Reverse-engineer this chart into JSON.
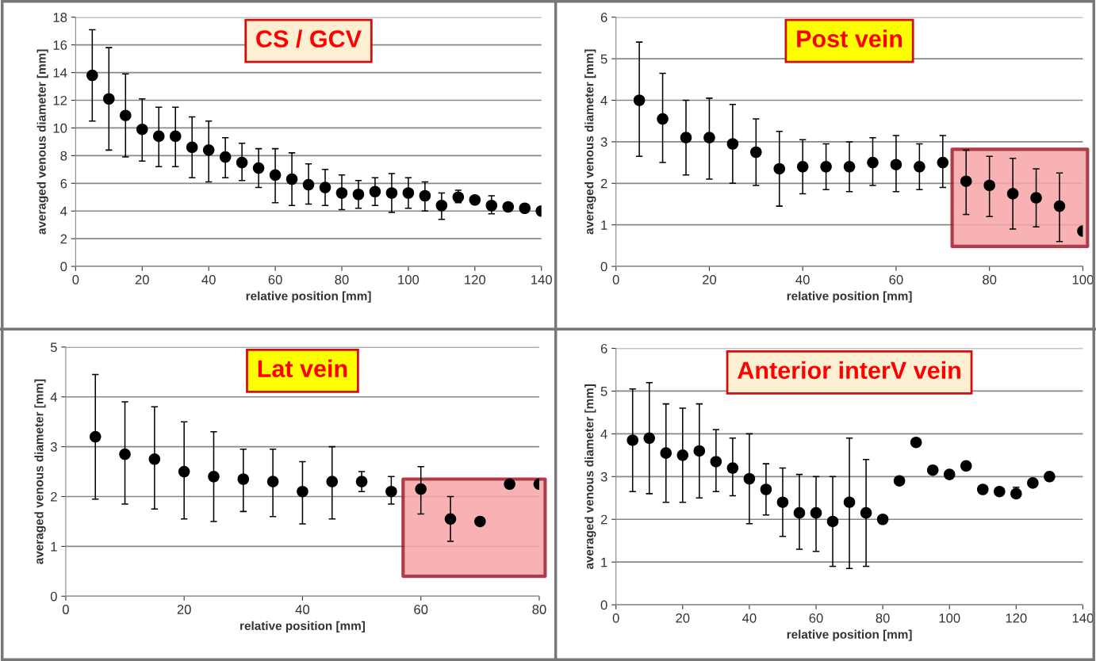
{
  "chart_data": [
    {
      "type": "scatter",
      "title": "CS / GCV",
      "xlabel": "relative position [mm]",
      "ylabel": "averaged venous diameter [mm]",
      "color": "#000000",
      "marker": "circle",
      "grid": "y",
      "x": [
        5,
        10,
        15,
        20,
        25,
        30,
        35,
        40,
        45,
        50,
        55,
        60,
        65,
        70,
        75,
        80,
        85,
        90,
        95,
        100,
        105,
        110,
        115,
        120,
        125,
        130,
        135,
        140
      ],
      "values": [
        13.8,
        12.1,
        10.9,
        9.9,
        9.4,
        9.4,
        8.6,
        8.4,
        7.9,
        7.5,
        7.1,
        6.6,
        6.3,
        5.9,
        5.7,
        5.3,
        5.2,
        5.4,
        5.3,
        5.3,
        5.1,
        4.4,
        5.0,
        4.8,
        4.4,
        4.3,
        4.2,
        4.0
      ],
      "errors": [
        [
          10.5,
          17.1
        ],
        [
          8.4,
          15.8
        ],
        [
          7.9,
          13.9
        ],
        [
          7.6,
          12.1
        ],
        [
          7.2,
          11.5
        ],
        [
          7.2,
          11.5
        ],
        [
          6.4,
          10.8
        ],
        [
          6.1,
          10.5
        ],
        [
          6.4,
          9.3
        ],
        [
          6.2,
          8.9
        ],
        [
          5.7,
          8.5
        ],
        [
          4.6,
          8.5
        ],
        [
          4.4,
          8.2
        ],
        [
          4.5,
          7.4
        ],
        [
          4.4,
          7.0
        ],
        [
          4.1,
          6.6
        ],
        [
          4.2,
          6.2
        ],
        [
          4.4,
          6.4
        ],
        [
          3.9,
          6.7
        ],
        [
          4.2,
          6.4
        ],
        [
          4.0,
          6.1
        ],
        [
          3.4,
          5.3
        ],
        [
          4.6,
          5.5
        ],
        null,
        [
          3.8,
          5.1
        ],
        null,
        null,
        null
      ],
      "xlim": [
        0,
        140
      ],
      "xticks": [
        0,
        20,
        40,
        60,
        80,
        100,
        120,
        140
      ],
      "ylim": [
        0,
        18
      ],
      "yticks": [
        0,
        2,
        4,
        6,
        8,
        10,
        12,
        14,
        16,
        18
      ]
    },
    {
      "type": "scatter",
      "title": "Post vein",
      "xlabel": "relative position [mm]",
      "ylabel": "averaged venous diameter [mm]",
      "color": "#000000",
      "marker": "circle",
      "grid": "y",
      "x": [
        5,
        10,
        15,
        20,
        25,
        30,
        35,
        40,
        45,
        50,
        55,
        60,
        65,
        70,
        75,
        80,
        85,
        90,
        95,
        100
      ],
      "values": [
        4.0,
        3.55,
        3.1,
        3.1,
        2.95,
        2.75,
        2.35,
        2.4,
        2.4,
        2.4,
        2.5,
        2.45,
        2.4,
        2.5,
        2.05,
        1.95,
        1.75,
        1.65,
        1.45,
        0.85
      ],
      "errors": [
        [
          2.65,
          5.4
        ],
        [
          2.5,
          4.65
        ],
        [
          2.2,
          4.0
        ],
        [
          2.1,
          4.05
        ],
        [
          2.0,
          3.9
        ],
        [
          1.95,
          3.55
        ],
        [
          1.45,
          3.25
        ],
        [
          1.75,
          3.05
        ],
        [
          1.85,
          2.95
        ],
        [
          1.8,
          3.0
        ],
        [
          1.95,
          3.1
        ],
        [
          1.8,
          3.15
        ],
        [
          1.85,
          2.95
        ],
        [
          1.9,
          3.15
        ],
        [
          1.25,
          2.8
        ],
        [
          1.2,
          2.65
        ],
        [
          0.9,
          2.6
        ],
        [
          0.95,
          2.35
        ],
        [
          0.6,
          2.25
        ],
        null
      ],
      "bands": [
        {
          "axis": "x",
          "from": 72,
          "to": 101,
          "color": "#f8a5a8"
        }
      ],
      "xlim": [
        0,
        100
      ],
      "xticks": [
        0,
        20,
        40,
        60,
        80,
        100
      ],
      "ylim": [
        0,
        6
      ],
      "yticks": [
        0,
        1,
        2,
        3,
        4,
        5,
        6
      ]
    },
    {
      "type": "scatter",
      "title": "Lat vein",
      "xlabel": "relative position [mm]",
      "ylabel": "averaged venous diameter [mm]",
      "color": "#000000",
      "marker": "circle",
      "grid": "y",
      "x": [
        5,
        10,
        15,
        20,
        25,
        30,
        35,
        40,
        45,
        50,
        55,
        60,
        65,
        70,
        75,
        80
      ],
      "values": [
        3.2,
        2.85,
        2.75,
        2.5,
        2.4,
        2.35,
        2.3,
        2.1,
        2.3,
        2.3,
        2.1,
        2.15,
        1.55,
        1.5,
        2.25,
        2.25
      ],
      "errors": [
        [
          1.95,
          4.45
        ],
        [
          1.85,
          3.9
        ],
        [
          1.75,
          3.8
        ],
        [
          1.55,
          3.5
        ],
        [
          1.5,
          3.3
        ],
        [
          1.7,
          2.95
        ],
        [
          1.6,
          2.95
        ],
        [
          1.45,
          2.7
        ],
        [
          1.55,
          3.0
        ],
        [
          2.1,
          2.5
        ],
        [
          1.85,
          2.4
        ],
        [
          1.65,
          2.6
        ],
        [
          1.1,
          2.0
        ],
        null,
        null,
        null
      ],
      "bands": [
        {
          "axis": "x",
          "from": 57,
          "to": 81,
          "color": "#f8a5a8"
        }
      ],
      "xlim": [
        0,
        80
      ],
      "xticks": [
        0,
        20,
        40,
        60,
        80
      ],
      "ylim": [
        0,
        5
      ],
      "yticks": [
        0,
        1,
        2,
        3,
        4,
        5
      ]
    },
    {
      "type": "scatter",
      "title": "Anterior interV vein",
      "xlabel": "relative position [mm]",
      "ylabel": "averaged venous diameter [mm]",
      "color": "#000000",
      "marker": "circle",
      "grid": "y",
      "x": [
        5,
        10,
        15,
        20,
        25,
        30,
        35,
        40,
        45,
        50,
        55,
        60,
        65,
        70,
        75,
        80,
        85,
        90,
        95,
        100,
        105,
        110,
        115,
        120,
        125,
        130
      ],
      "values": [
        3.85,
        3.9,
        3.55,
        3.5,
        3.6,
        3.35,
        3.2,
        2.95,
        2.7,
        2.4,
        2.15,
        2.15,
        1.95,
        2.4,
        2.15,
        2.0,
        2.9,
        3.8,
        3.15,
        3.05,
        3.25,
        2.7,
        2.65,
        2.6,
        2.85,
        3.0
      ],
      "errors": [
        [
          2.65,
          5.05
        ],
        [
          2.6,
          5.2
        ],
        [
          2.4,
          4.7
        ],
        [
          2.4,
          4.6
        ],
        [
          2.5,
          4.7
        ],
        [
          2.65,
          4.1
        ],
        [
          2.55,
          3.9
        ],
        [
          1.9,
          4.0
        ],
        [
          2.1,
          3.3
        ],
        [
          1.6,
          3.2
        ],
        [
          1.3,
          3.05
        ],
        [
          1.25,
          3.0
        ],
        [
          0.9,
          3.0
        ],
        [
          0.85,
          3.9
        ],
        [
          0.9,
          3.4
        ],
        null,
        null,
        null,
        null,
        null,
        null,
        null,
        null,
        [
          2.5,
          2.75
        ],
        null,
        null
      ],
      "xlim": [
        0,
        140
      ],
      "xticks": [
        0,
        20,
        40,
        60,
        80,
        100,
        120,
        140
      ],
      "ylim": [
        0,
        6
      ],
      "yticks": [
        0,
        1,
        2,
        3,
        4,
        5,
        6
      ]
    }
  ]
}
